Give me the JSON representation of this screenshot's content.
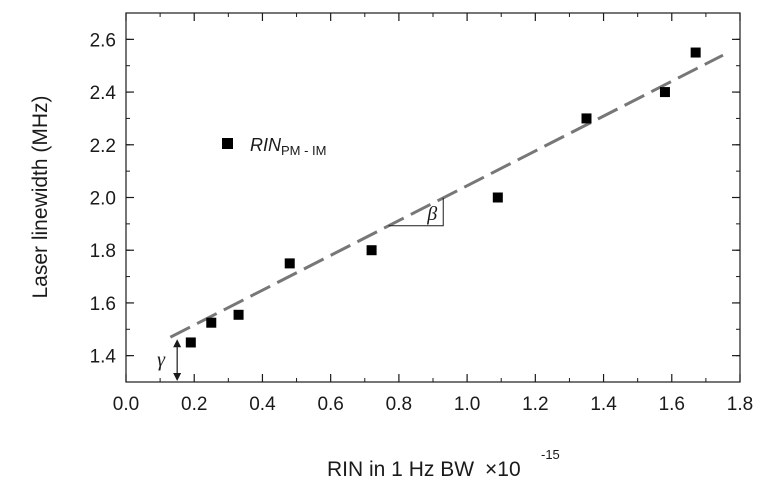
{
  "chart_data": {
    "type": "scatter",
    "title": "",
    "xlabel": "RIN in 1 Hz BW",
    "xlabel_multiplier_base": "×10",
    "xlabel_multiplier_exp": "-15",
    "ylabel": "Laser linewidth (MHz)",
    "xlim": [
      0.0,
      1.8
    ],
    "ylim": [
      1.3,
      2.7
    ],
    "xticks": [
      "0.0",
      "0.2",
      "0.4",
      "0.6",
      "0.8",
      "1.0",
      "1.2",
      "1.4",
      "1.6",
      "1.8"
    ],
    "yticks": [
      "1.4",
      "1.6",
      "1.8",
      "2.0",
      "2.2",
      "2.4",
      "2.6"
    ],
    "grid": false,
    "legend_position": "upper-left",
    "series": [
      {
        "name_main": "RIN",
        "name_sub": "PM - IM",
        "marker": "square",
        "color": "#000000",
        "x": [
          0.19,
          0.25,
          0.33,
          0.48,
          0.72,
          1.09,
          1.35,
          1.58,
          1.67
        ],
        "y": [
          1.45,
          1.525,
          1.555,
          1.75,
          1.8,
          2.0,
          2.3,
          2.4,
          2.55
        ]
      }
    ],
    "fit_line": {
      "style": "dashed",
      "color": "#777777",
      "x_start": 0.13,
      "y_start": 1.47,
      "x_end": 1.75,
      "y_end": 2.54
    },
    "annotations": {
      "beta": "β",
      "gamma": "γ"
    }
  }
}
